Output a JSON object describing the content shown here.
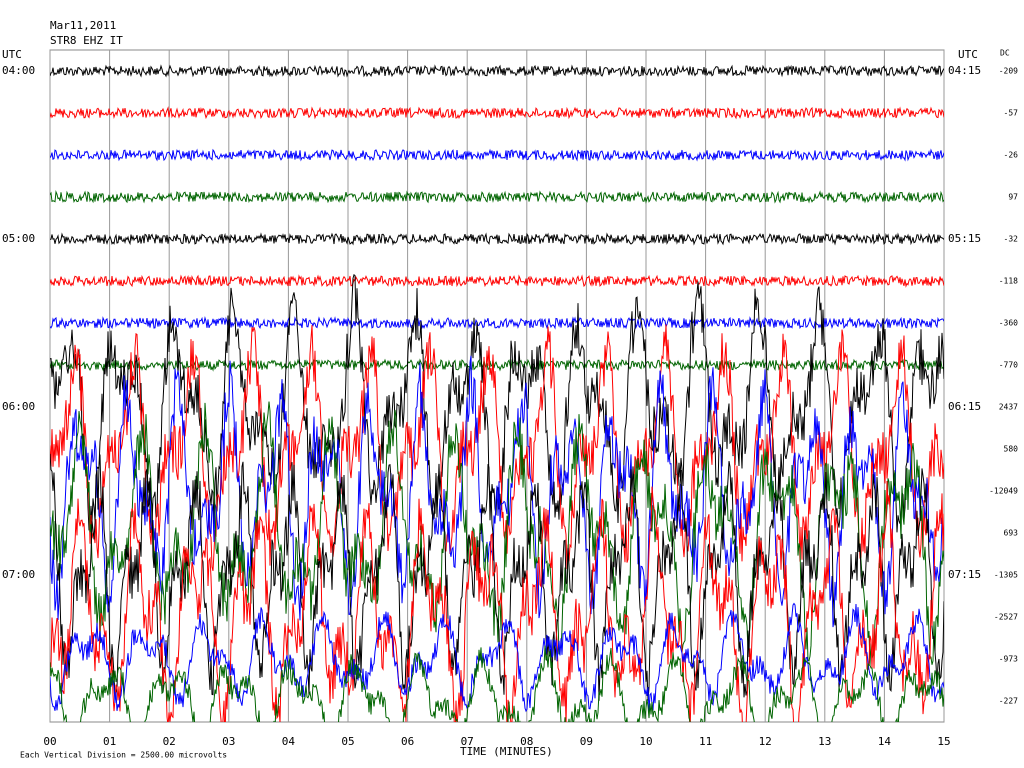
{
  "chart_data": {
    "type": "helicorder",
    "title": "Mar11,2011",
    "subtitle": "STR8 EHZ IT",
    "left_unit": "UTC",
    "right_unit": "UTC",
    "dc_header": "DC",
    "left_labels": [
      "04:00",
      "05:00",
      "06:00",
      "07:00"
    ],
    "right_labels": [
      "04:15",
      "05:15",
      "06:15",
      "07:15"
    ],
    "dc_values": [
      -209,
      -57,
      -26,
      97,
      -32,
      -118,
      -360,
      -770,
      2437,
      580,
      -12049,
      693,
      -1305,
      -2527,
      -973,
      -227
    ],
    "colors": [
      "#000000",
      "#ff0000",
      "#0000ff",
      "#006400"
    ],
    "xlim": [
      0,
      15
    ],
    "xticks": [
      {
        "value": 0,
        "label": "00"
      },
      {
        "value": 1,
        "label": "01"
      },
      {
        "value": 2,
        "label": "02"
      },
      {
        "value": 3,
        "label": "03"
      },
      {
        "value": 4,
        "label": "04"
      },
      {
        "value": 5,
        "label": "05"
      },
      {
        "value": 6,
        "label": "06"
      },
      {
        "value": 7,
        "label": "07"
      },
      {
        "value": 8,
        "label": "08"
      },
      {
        "value": 9,
        "label": "09"
      },
      {
        "value": 10,
        "label": "10"
      },
      {
        "value": 11,
        "label": "11"
      },
      {
        "value": 12,
        "label": "12"
      },
      {
        "value": 13,
        "label": "13"
      },
      {
        "value": 14,
        "label": "14"
      },
      {
        "value": 15,
        "label": "15"
      }
    ],
    "xlabel": "TIME (MINUTES)",
    "footnote": "Each Vertical Division = 2500.00 microvolts",
    "grid": true
  }
}
